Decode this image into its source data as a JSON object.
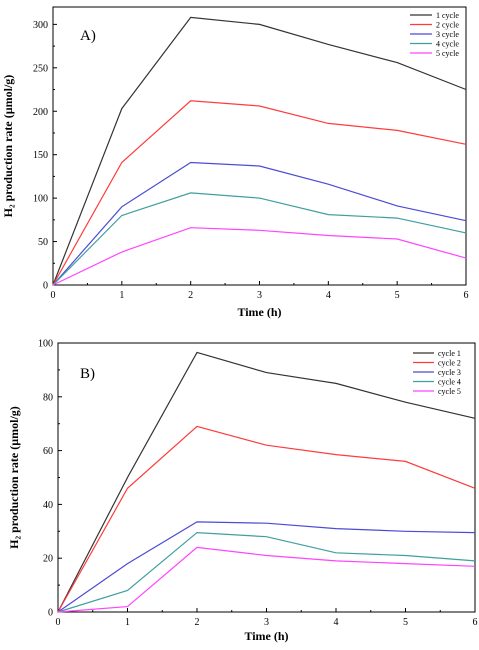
{
  "chart_data": [
    {
      "type": "line",
      "panel_label": "A)",
      "x": [
        0,
        1,
        2,
        3,
        4,
        5,
        6
      ],
      "xlabel": "Time (h)",
      "ylabel": "H₂ production rate (µmol/g)",
      "xlim": [
        0,
        6
      ],
      "ylim": [
        0,
        320
      ],
      "xticks": [
        "0",
        "1",
        "2",
        "3",
        "4",
        "5",
        "6"
      ],
      "yticks": [
        "0",
        "50",
        "100",
        "150",
        "200",
        "250",
        "300"
      ],
      "ytick_values": [
        0,
        50,
        100,
        150,
        200,
        250,
        300
      ],
      "grid": false,
      "legend_position": "top-right",
      "series": [
        {
          "name": "1 cycle",
          "color": "#333333",
          "values": [
            0,
            203,
            308,
            300,
            277,
            256,
            225
          ]
        },
        {
          "name": "2 cycle",
          "color": "#ff3b3b",
          "values": [
            0,
            141,
            212,
            206,
            186,
            178,
            162
          ]
        },
        {
          "name": "3 cycle",
          "color": "#4b4bd8",
          "values": [
            0,
            90,
            141,
            137,
            116,
            91,
            74
          ]
        },
        {
          "name": "4 cycle",
          "color": "#3f9f9f",
          "values": [
            0,
            80,
            106,
            100,
            81,
            77,
            60
          ]
        },
        {
          "name": "5 cycle",
          "color": "#ff44ff",
          "values": [
            0,
            38,
            66,
            63,
            57,
            53,
            31
          ]
        }
      ]
    },
    {
      "type": "line",
      "panel_label": "B)",
      "x": [
        0,
        1,
        2,
        3,
        4,
        5,
        6
      ],
      "xlabel": "Time (h)",
      "ylabel": "H₂ production rate (µmol/g)",
      "xlim": [
        0,
        6
      ],
      "ylim": [
        0,
        100
      ],
      "xticks": [
        "0",
        "1",
        "2",
        "3",
        "4",
        "5",
        "6"
      ],
      "yticks": [
        "0",
        "20",
        "40",
        "60",
        "80",
        "100"
      ],
      "ytick_values": [
        0,
        20,
        40,
        60,
        80,
        100
      ],
      "grid": false,
      "legend_position": "top-right",
      "series": [
        {
          "name": "cycle 1",
          "color": "#333333",
          "values": [
            0,
            50,
            96.5,
            89,
            85,
            78,
            72
          ]
        },
        {
          "name": "cycle 2",
          "color": "#ff3b3b",
          "values": [
            0,
            46,
            69,
            62,
            58.5,
            56,
            46
          ]
        },
        {
          "name": "cycle 3",
          "color": "#4b4bd8",
          "values": [
            0,
            18,
            33.5,
            33,
            31,
            30,
            29.5
          ]
        },
        {
          "name": "cycle 4",
          "color": "#3f9f9f",
          "values": [
            0,
            8,
            29.5,
            28,
            22,
            21,
            19
          ]
        },
        {
          "name": "cycle 5",
          "color": "#ff44ff",
          "values": [
            0,
            2,
            24,
            21,
            19,
            18,
            17
          ]
        }
      ]
    }
  ]
}
